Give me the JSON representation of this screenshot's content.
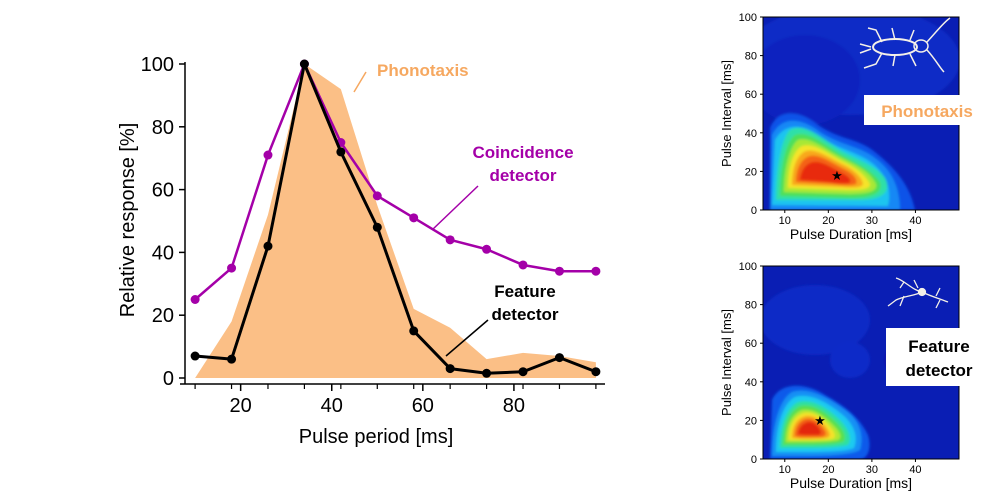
{
  "chart_data": [
    {
      "type": "line",
      "xlabel": "Pulse period [ms]",
      "ylabel": "Relative response [%]",
      "xlim": [
        8,
        100
      ],
      "ylim": [
        0,
        100
      ],
      "xticks": [
        20,
        40,
        60,
        80
      ],
      "yticks": [
        0,
        20,
        40,
        60,
        80,
        100
      ],
      "grid": false,
      "series": [
        {
          "name": "Phonotaxis",
          "style": "area",
          "color": "#fbbf86",
          "x": [
            10,
            18,
            26,
            34,
            42,
            50,
            58,
            66,
            74,
            82,
            90,
            98
          ],
          "values": [
            0,
            18,
            52,
            100,
            92,
            55,
            22,
            16,
            6,
            8,
            7,
            5
          ]
        },
        {
          "name": "Coincidence detector",
          "style": "line-markers",
          "color": "#a400a8",
          "x": [
            10,
            18,
            26,
            34,
            42,
            50,
            58,
            66,
            74,
            82,
            90,
            98
          ],
          "values": [
            25,
            35,
            71,
            100,
            75,
            58,
            51,
            44,
            41,
            36,
            34,
            34
          ]
        },
        {
          "name": "Feature detector",
          "style": "line-markers",
          "color": "#000000",
          "x": [
            10,
            18,
            26,
            34,
            42,
            50,
            58,
            66,
            74,
            82,
            90,
            98
          ],
          "values": [
            7,
            6,
            42,
            100,
            72,
            48,
            15,
            3,
            1.5,
            2,
            6.5,
            2
          ]
        }
      ],
      "annotations": {
        "phonotaxis": "Phonotaxis",
        "coincidence_line1": "Coincidence",
        "coincidence_line2": "detector",
        "feature_line1": "Feature",
        "feature_line2": "detector"
      }
    },
    {
      "type": "heatmap",
      "panel": "top",
      "xlabel": "Pulse Duration [ms]",
      "ylabel": "Pulse Interval [ms]",
      "xlim": [
        5,
        50
      ],
      "ylim": [
        0,
        100
      ],
      "xticks": [
        10,
        20,
        30,
        40
      ],
      "yticks": [
        0,
        20,
        40,
        60,
        80,
        100
      ],
      "label": "Phonotaxis",
      "label_color": "#f6a860",
      "icon": "cricket-icon",
      "peak": [
        21,
        18
      ]
    },
    {
      "type": "heatmap",
      "panel": "bottom",
      "xlabel": "Pulse Duration [ms]",
      "ylabel": "Pulse Interval [ms]",
      "xlim": [
        5,
        50
      ],
      "ylim": [
        0,
        100
      ],
      "xticks": [
        10,
        20,
        30,
        40
      ],
      "yticks": [
        0,
        20,
        40,
        60,
        80,
        100
      ],
      "label_line1": "Feature",
      "label_line2": "detector",
      "label_color": "#000000",
      "icon": "neuron-icon",
      "peak": [
        17.5,
        19
      ]
    }
  ]
}
